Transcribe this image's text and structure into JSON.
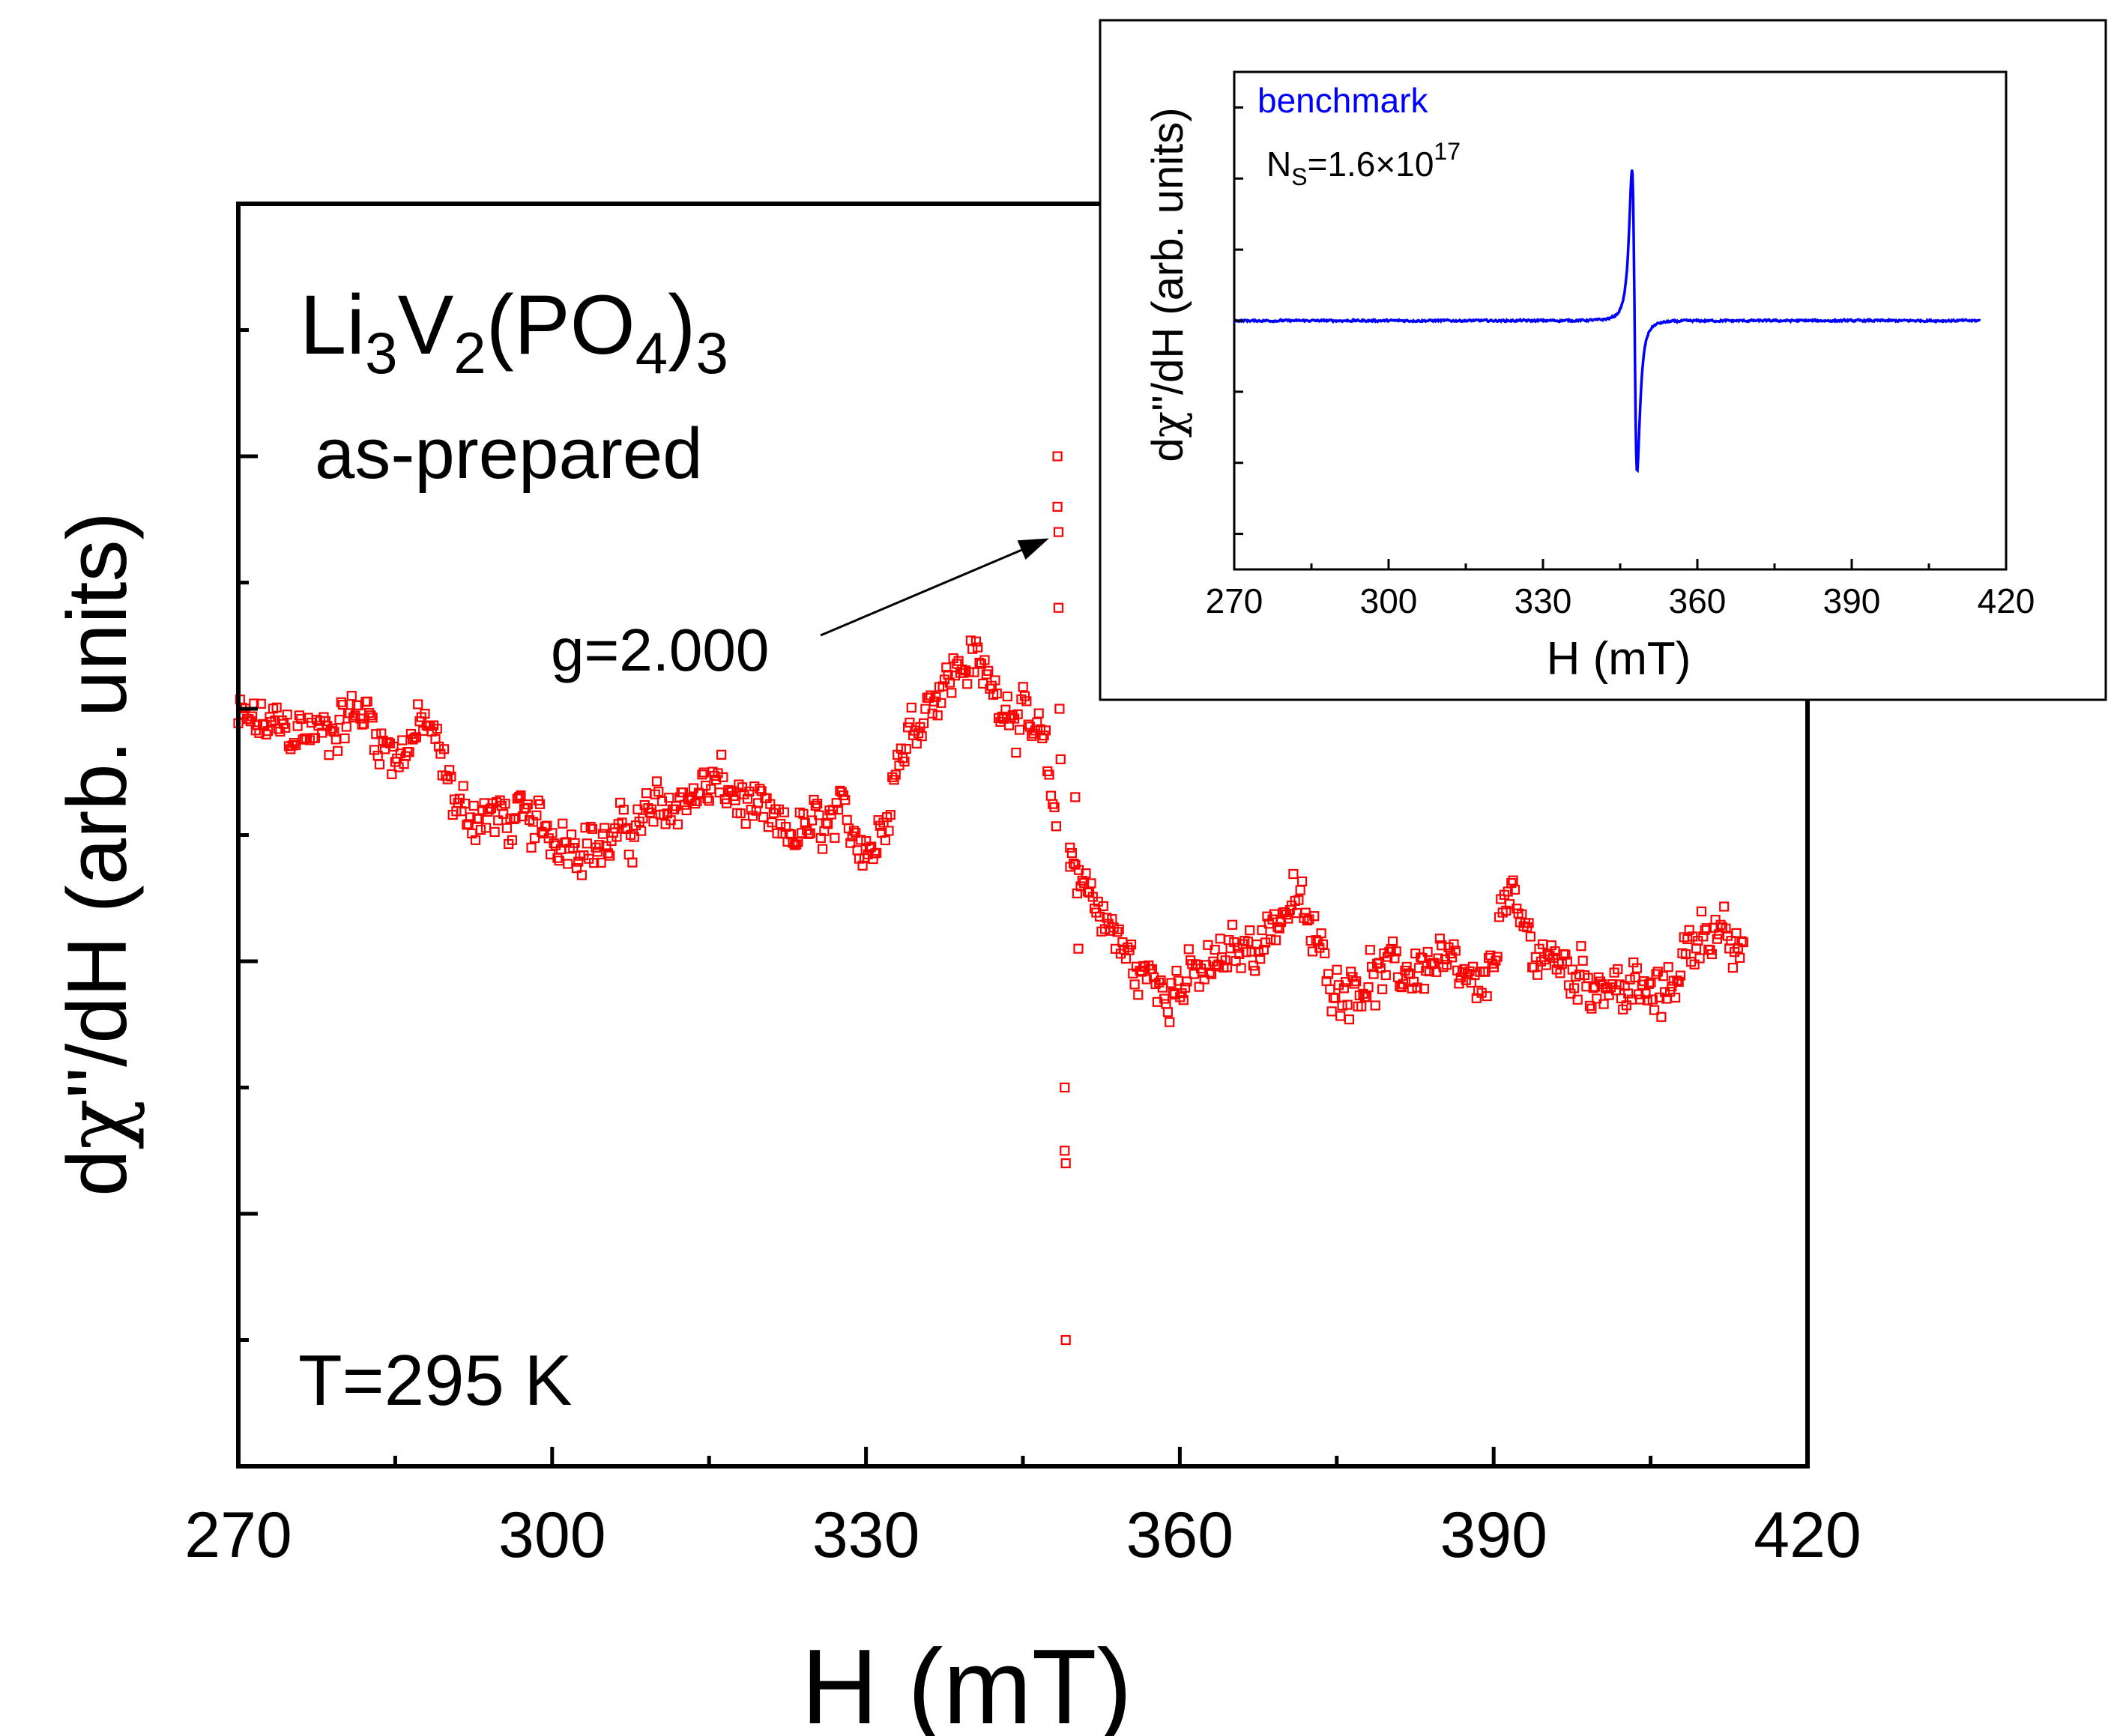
{
  "chart_data": [
    {
      "id": "main",
      "type": "scatter",
      "xlabel": "H (mT)",
      "ylabel_prefix": "d",
      "ylabel_symbol": "χ",
      "ylabel_suffix": "''/dH (arb. units)",
      "xlim": [
        270,
        420
      ],
      "ylim": [
        0,
        10
      ],
      "x_ticks": [
        "270",
        "300",
        "330",
        "360",
        "390",
        "420"
      ],
      "series": [
        {
          "name": "as-prepared",
          "color": "#ff0000",
          "marker": "open-square",
          "baseline": [
            [
              270,
              5.9
            ],
            [
              278,
              5.8
            ],
            [
              282,
              6.0
            ],
            [
              285,
              5.6
            ],
            [
              288,
              5.9
            ],
            [
              291,
              5.2
            ],
            [
              297,
              5.1
            ],
            [
              305,
              4.9
            ],
            [
              310,
              5.2
            ],
            [
              316,
              5.4
            ],
            [
              322,
              5.0
            ],
            [
              328,
              5.1
            ],
            [
              331,
              4.9
            ],
            [
              333,
              5.6
            ],
            [
              336,
              6.1
            ],
            [
              340,
              6.4
            ],
            [
              343,
              6.1
            ],
            [
              345,
              5.9
            ],
            [
              347,
              5.7
            ],
            [
              348.5,
              4.9
            ],
            [
              350.5,
              4.7
            ],
            [
              353,
              4.3
            ],
            [
              356,
              3.9
            ],
            [
              360,
              3.8
            ],
            [
              364,
              4.0
            ],
            [
              368,
              4.2
            ],
            [
              371,
              4.5
            ],
            [
              375,
              3.8
            ],
            [
              380,
              3.9
            ],
            [
              385,
              4.0
            ],
            [
              389,
              3.7
            ],
            [
              391,
              4.5
            ],
            [
              394,
              4.1
            ],
            [
              398,
              3.9
            ],
            [
              402,
              3.8
            ],
            [
              406,
              3.7
            ],
            [
              410,
              4.3
            ],
            [
              414,
              4.0
            ]
          ],
          "noise_amplitude": 0.28,
          "step_mT": 0.1667,
          "spike_points": [
            [
              348.3,
              8.0
            ],
            [
              348.3,
              7.6
            ],
            [
              348.4,
              7.4
            ],
            [
              348.4,
              6.8
            ],
            [
              348.5,
              6.0
            ],
            [
              348.6,
              5.6
            ],
            [
              349.0,
              3.0
            ],
            [
              349.0,
              2.5
            ],
            [
              349.1,
              2.4
            ],
            [
              349.1,
              1.0
            ],
            [
              349.5,
              4.9
            ],
            [
              350.0,
              5.3
            ],
            [
              350.3,
              4.1
            ]
          ]
        }
      ],
      "annotations": {
        "compound": "Li3V2(PO4)3",
        "sample": "as-prepared",
        "g_label": "g=2.000",
        "g_arrow_target": [
          347.5,
          7.35
        ],
        "temperature": "T=295 K"
      }
    },
    {
      "id": "inset",
      "type": "line",
      "xlabel": "H (mT)",
      "ylabel_prefix": "d",
      "ylabel_symbol": "χ",
      "ylabel_suffix": "''/dH (arb. units)",
      "xlim": [
        270,
        420
      ],
      "ylim": [
        -7,
        7
      ],
      "x_ticks": [
        "270",
        "300",
        "330",
        "360",
        "390",
        "420"
      ],
      "series": [
        {
          "name": "benchmark",
          "color": "#0000ff",
          "x_range": [
            270,
            415
          ],
          "peak_center": 347.8,
          "peak_halfwidth_mT": 0.5,
          "peak_amplitude": 5.8
        }
      ],
      "annotations": {
        "legend_label": "benchmark",
        "ns_main": "N",
        "ns_sub": "S",
        "ns_value": "=1.6×10",
        "ns_exp": "17"
      }
    }
  ]
}
